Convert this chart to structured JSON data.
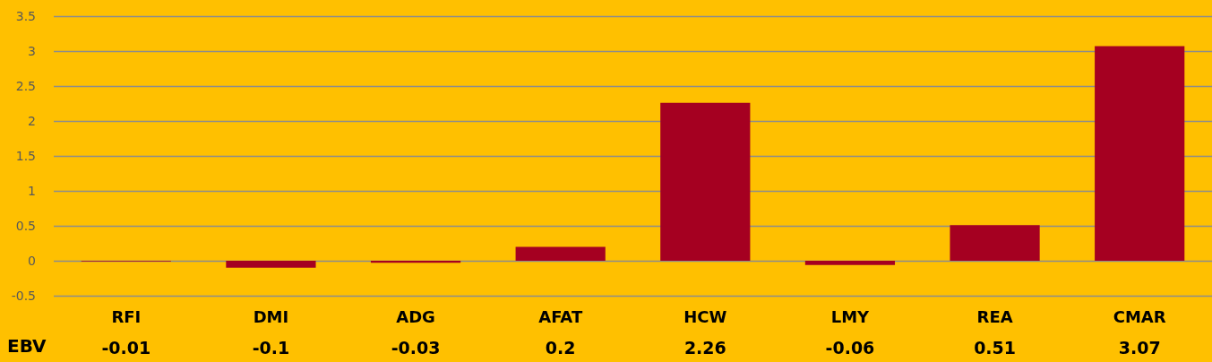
{
  "chart_data": {
    "type": "bar",
    "categories": [
      "RFI",
      "DMI",
      "ADG",
      "AFAT",
      "HCW",
      "LMY",
      "REA",
      "CMAR"
    ],
    "series": [
      {
        "name": "EBV",
        "color": "#a50021",
        "values": [
          -0.01,
          -0.1,
          -0.03,
          0.2,
          2.26,
          -0.06,
          0.51,
          3.07
        ]
      }
    ],
    "ylim": [
      -0.5,
      3.5
    ],
    "yticks": [
      -0.5,
      0,
      0.5,
      1,
      1.5,
      2,
      2.5,
      3,
      3.5
    ],
    "grid": "y",
    "legend": false,
    "data_labels": true
  }
}
